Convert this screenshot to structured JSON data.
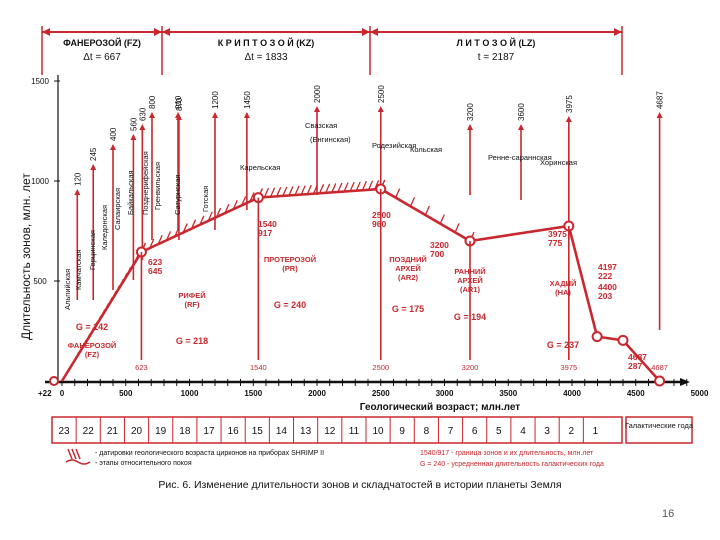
{
  "colors": {
    "red": "#c8282e",
    "black": "#111111",
    "gray": "#666666",
    "blue": "#2a2a8a"
  },
  "eras": [
    {
      "label": "ФАНЕРОЗОЙ (FZ)",
      "dt": "Δt = 667"
    },
    {
      "label": "К Р И П Т О З О Й (KZ)",
      "dt": "Δt = 1833"
    },
    {
      "label": "Л И Т О З О Й (LZ)",
      "dt": "t = 2187"
    }
  ],
  "y_axis": {
    "label": "Длительность зонов, млн. лет",
    "ticks": [
      "1500",
      "1000",
      "500"
    ]
  },
  "x_axis": {
    "label": "Геологический возраст; млн.лет",
    "ticks": [
      "+22",
      "0",
      "500",
      "1000",
      "1500",
      "2000",
      "2500",
      "3000",
      "3500",
      "4000",
      "4500",
      "5000"
    ]
  },
  "top_markers": [
    "120",
    "245",
    "400",
    "560",
    "630",
    "870",
    "800",
    "910",
    "1200",
    "1450",
    "2000",
    "2500",
    "3200",
    "3600",
    "3975",
    "4687"
  ],
  "orogenies": [
    "Альпийская",
    "Камчатская",
    "Герцинская",
    "Каледонская",
    "Салаирская",
    "Байкальская",
    "Позднерифейская",
    "Гренвильская",
    "Сатурнская",
    "Готская",
    "Карельская",
    "Свазская",
    "(Енгинская)",
    "Родезийская",
    "Кольская",
    "Ренне-сараннская",
    "Хоринская"
  ],
  "curve_points": [
    {
      "label": "623\n645"
    },
    {
      "label": "1540\n917"
    },
    {
      "label": "2500\n960"
    },
    {
      "label": "3200\n700"
    },
    {
      "label": "3975\n775"
    },
    {
      "label": "4197\n222"
    },
    {
      "label": "4400\n203"
    },
    {
      "label": "4687\n287"
    }
  ],
  "zones": [
    {
      "name": "РИФЕЙ\n(RF)",
      "g": "G = 218"
    },
    {
      "name": "ПРОТЕРОЗОЙ\n(PR)",
      "g": "G = 240"
    },
    {
      "name": "ПОЗДНИЙ\nАРХЕЙ\n(AR2)",
      "g": "G = 175"
    },
    {
      "name": "РАННИЙ\nАРХЕЙ\n(AR1)",
      "g": "G = 194"
    },
    {
      "name": "ХАДИЙ\n(HA)",
      "g": "G = 237"
    },
    {
      "name": "ФАНЕРОЗОЙ\n(FZ)",
      "g": "G = 142"
    }
  ],
  "bottom_marks": [
    "623",
    "1540",
    "2500",
    "3200",
    "3975",
    "4687"
  ],
  "cycles": [
    "23",
    "22",
    "21",
    "20",
    "19",
    "18",
    "17",
    "16",
    "15",
    "14",
    "13",
    "12",
    "11",
    "10",
    "9",
    "8",
    "7",
    "6",
    "5",
    "4",
    "3",
    "2",
    "1"
  ],
  "cycles_label": "Галактические года",
  "legend_left": [
    "- датировки геологического возраста цирконов на приборах SHRIMP II",
    "- этапы относительного покоя"
  ],
  "legend_right": [
    "1540/917 - граница зонов и их длительность, млн.лет",
    "G = 240 - усредненная длительность галактических года"
  ],
  "caption": "Рис. 6. Изменение длительности зонов и складчатостей в истории планеты Земля",
  "slide_number": "16"
}
